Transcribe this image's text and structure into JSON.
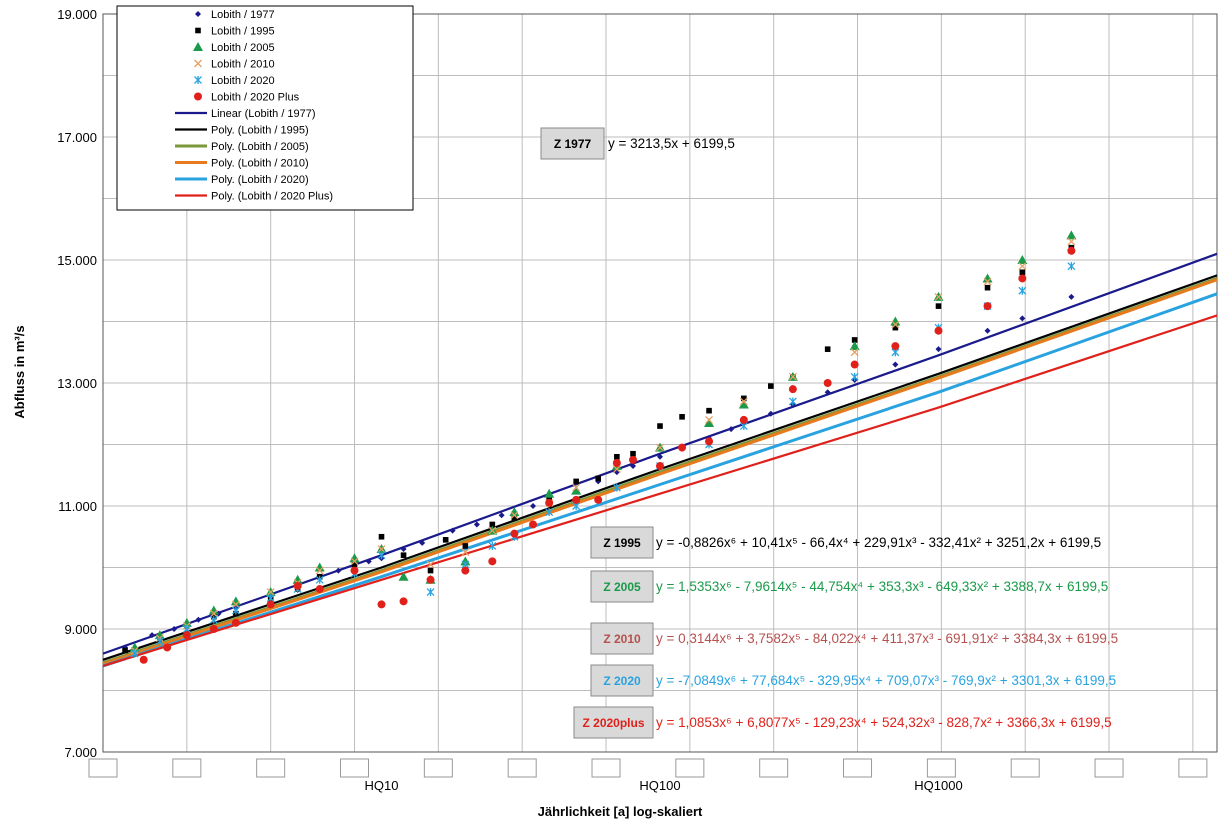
{
  "chart_data": {
    "type": "scatter",
    "xlabel": "Jährlichkeit [a] log-skaliert",
    "ylabel": "Abfluss in m³/s",
    "x_scale": "log",
    "xlim": [
      1,
      10000
    ],
    "ylim": [
      7000,
      19000
    ],
    "grid": true,
    "legend_position": "top-left",
    "y_ticks": [
      "7.000",
      "9.000",
      "11.000",
      "13.000",
      "15.000",
      "17.000",
      "19.000"
    ],
    "x_tick_labels": [
      {
        "x": 10,
        "label": "HQ10"
      },
      {
        "x": 100,
        "label": "HQ100"
      },
      {
        "x": 1000,
        "label": "HQ1000"
      }
    ],
    "series": [
      {
        "name": "Lobith / 1977",
        "marker": "diamond",
        "color": "#1a1a8c",
        "points": [
          [
            1.2,
            8700
          ],
          [
            1.5,
            8900
          ],
          [
            1.8,
            9000
          ],
          [
            2.2,
            9150
          ],
          [
            2.6,
            9250
          ],
          [
            3,
            9350
          ],
          [
            4,
            9550
          ],
          [
            5,
            9700
          ],
          [
            6,
            9850
          ],
          [
            7,
            9950
          ],
          [
            9,
            10100
          ],
          [
            10,
            10150
          ],
          [
            12,
            10300
          ],
          [
            14,
            10400
          ],
          [
            18,
            10600
          ],
          [
            22,
            10700
          ],
          [
            27,
            10850
          ],
          [
            30,
            10900
          ],
          [
            35,
            11000
          ],
          [
            40,
            11100
          ],
          [
            50,
            11250
          ],
          [
            60,
            11400
          ],
          [
            70,
            11550
          ],
          [
            80,
            11650
          ],
          [
            100,
            11800
          ],
          [
            120,
            11950
          ],
          [
            150,
            12100
          ],
          [
            180,
            12250
          ],
          [
            200,
            12350
          ],
          [
            250,
            12500
          ],
          [
            300,
            12650
          ],
          [
            400,
            12850
          ],
          [
            500,
            13050
          ],
          [
            700,
            13300
          ],
          [
            1000,
            13550
          ],
          [
            1500,
            13850
          ],
          [
            2000,
            14050
          ],
          [
            3000,
            14400
          ]
        ]
      },
      {
        "name": "Lobith / 1995",
        "marker": "square",
        "color": "#000000",
        "points": [
          [
            1.2,
            8650
          ],
          [
            1.6,
            8850
          ],
          [
            2,
            9050
          ],
          [
            2.5,
            9200
          ],
          [
            3,
            9250
          ],
          [
            4,
            9500
          ],
          [
            5,
            9650
          ],
          [
            6,
            9850
          ],
          [
            8,
            10050
          ],
          [
            10,
            10500
          ],
          [
            12,
            10200
          ],
          [
            15,
            9950
          ],
          [
            17,
            10450
          ],
          [
            20,
            10350
          ],
          [
            25,
            10700
          ],
          [
            30,
            10800
          ],
          [
            40,
            11150
          ],
          [
            50,
            11400
          ],
          [
            60,
            11450
          ],
          [
            70,
            11800
          ],
          [
            80,
            11850
          ],
          [
            100,
            12300
          ],
          [
            120,
            12450
          ],
          [
            150,
            12550
          ],
          [
            200,
            12750
          ],
          [
            250,
            12950
          ],
          [
            300,
            13100
          ],
          [
            400,
            13550
          ],
          [
            500,
            13700
          ],
          [
            700,
            13900
          ],
          [
            1000,
            14250
          ],
          [
            1500,
            14550
          ],
          [
            2000,
            14800
          ],
          [
            3000,
            15200
          ]
        ]
      },
      {
        "name": "Lobith / 2005",
        "marker": "triangle",
        "color": "#1a9a4a",
        "points": [
          [
            1.3,
            8700
          ],
          [
            1.6,
            8900
          ],
          [
            2,
            9100
          ],
          [
            2.5,
            9300
          ],
          [
            3,
            9450
          ],
          [
            4,
            9600
          ],
          [
            5,
            9800
          ],
          [
            6,
            10000
          ],
          [
            8,
            10150
          ],
          [
            10,
            10300
          ],
          [
            12,
            9850
          ],
          [
            15,
            9800
          ],
          [
            20,
            10100
          ],
          [
            25,
            10600
          ],
          [
            30,
            10900
          ],
          [
            40,
            11200
          ],
          [
            50,
            11250
          ],
          [
            70,
            11650
          ],
          [
            100,
            11950
          ],
          [
            150,
            12350
          ],
          [
            200,
            12650
          ],
          [
            300,
            13100
          ],
          [
            500,
            13600
          ],
          [
            700,
            14000
          ],
          [
            1000,
            14400
          ],
          [
            1500,
            14700
          ],
          [
            2000,
            15000
          ],
          [
            3000,
            15400
          ]
        ]
      },
      {
        "name": "Lobith / 2010",
        "marker": "x",
        "color": "#e8a060",
        "points": [
          [
            1.3,
            8650
          ],
          [
            1.6,
            8850
          ],
          [
            2,
            9050
          ],
          [
            2.5,
            9250
          ],
          [
            3,
            9400
          ],
          [
            4,
            9600
          ],
          [
            5,
            9750
          ],
          [
            6,
            9950
          ],
          [
            8,
            10100
          ],
          [
            10,
            10300
          ],
          [
            15,
            10050
          ],
          [
            20,
            10250
          ],
          [
            25,
            10600
          ],
          [
            30,
            10850
          ],
          [
            40,
            11050
          ],
          [
            50,
            11300
          ],
          [
            70,
            11600
          ],
          [
            100,
            11950
          ],
          [
            150,
            12400
          ],
          [
            200,
            12700
          ],
          [
            300,
            13100
          ],
          [
            500,
            13500
          ],
          [
            700,
            13950
          ],
          [
            1000,
            14400
          ],
          [
            1500,
            14650
          ],
          [
            2000,
            14900
          ],
          [
            3000,
            15300
          ]
        ]
      },
      {
        "name": "Lobith / 2020",
        "marker": "asterisk",
        "color": "#29a3df",
        "points": [
          [
            1.3,
            8600
          ],
          [
            1.6,
            8800
          ],
          [
            2,
            9000
          ],
          [
            2.5,
            9150
          ],
          [
            3,
            9300
          ],
          [
            4,
            9500
          ],
          [
            5,
            9650
          ],
          [
            6,
            9800
          ],
          [
            8,
            9900
          ],
          [
            10,
            10200
          ],
          [
            15,
            9600
          ],
          [
            20,
            10050
          ],
          [
            25,
            10350
          ],
          [
            30,
            10500
          ],
          [
            40,
            10900
          ],
          [
            50,
            11000
          ],
          [
            70,
            11300
          ],
          [
            100,
            11650
          ],
          [
            150,
            12000
          ],
          [
            200,
            12300
          ],
          [
            300,
            12700
          ],
          [
            500,
            13100
          ],
          [
            700,
            13500
          ],
          [
            1000,
            13900
          ],
          [
            1500,
            14250
          ],
          [
            2000,
            14500
          ],
          [
            3000,
            14900
          ]
        ]
      },
      {
        "name": "Lobith / 2020 Plus",
        "marker": "circle",
        "color": "#e0211b",
        "points": [
          [
            1.4,
            8500
          ],
          [
            1.7,
            8700
          ],
          [
            2,
            8900
          ],
          [
            2.5,
            9000
          ],
          [
            3,
            9100
          ],
          [
            4,
            9400
          ],
          [
            5,
            9700
          ],
          [
            6,
            9650
          ],
          [
            8,
            9950
          ],
          [
            10,
            9400
          ],
          [
            12,
            9450
          ],
          [
            15,
            9800
          ],
          [
            20,
            9950
          ],
          [
            25,
            10100
          ],
          [
            30,
            10550
          ],
          [
            35,
            10700
          ],
          [
            40,
            11050
          ],
          [
            50,
            11100
          ],
          [
            60,
            11100
          ],
          [
            70,
            11700
          ],
          [
            80,
            11750
          ],
          [
            100,
            11650
          ],
          [
            120,
            11950
          ],
          [
            150,
            12050
          ],
          [
            200,
            12400
          ],
          [
            300,
            12900
          ],
          [
            400,
            13000
          ],
          [
            500,
            13300
          ],
          [
            700,
            13600
          ],
          [
            1000,
            13850
          ],
          [
            1500,
            14250
          ],
          [
            2000,
            14700
          ],
          [
            3000,
            15150
          ]
        ]
      }
    ],
    "trendlines": [
      {
        "name": "Linear (Lobith / 1977)",
        "color": "#1a1a8c",
        "width": 2.2,
        "points": [
          [
            1,
            8600
          ],
          [
            10,
            10200
          ],
          [
            100,
            11850
          ],
          [
            1000,
            13450
          ],
          [
            10000,
            15100
          ]
        ]
      },
      {
        "name": "Poly. (Lobith / 1995)",
        "color": "#000000",
        "width": 2.2,
        "points": [
          [
            1,
            8500
          ],
          [
            10,
            10000
          ],
          [
            100,
            11600
          ],
          [
            1000,
            13150
          ],
          [
            10000,
            14750
          ]
        ]
      },
      {
        "name": "Poly. (Lobith / 2005)",
        "color": "#7a9a3a",
        "width": 3,
        "points": [
          [
            1,
            8450
          ],
          [
            10,
            9950
          ],
          [
            100,
            11550
          ],
          [
            1000,
            13100
          ],
          [
            10000,
            14700
          ]
        ]
      },
      {
        "name": "Poly. (Lobith / 2010)",
        "color": "#e87a1e",
        "width": 3,
        "points": [
          [
            1,
            8430
          ],
          [
            10,
            9930
          ],
          [
            100,
            11520
          ],
          [
            1000,
            13080
          ],
          [
            10000,
            14680
          ]
        ]
      },
      {
        "name": "Poly. (Lobith / 2020)",
        "color": "#29a3df",
        "width": 3,
        "points": [
          [
            1,
            8400
          ],
          [
            10,
            9850
          ],
          [
            100,
            11350
          ],
          [
            1000,
            12850
          ],
          [
            10000,
            14450
          ]
        ]
      },
      {
        "name": "Poly. (Lobith / 2020 Plus)",
        "color": "#e0211b",
        "width": 2.2,
        "points": [
          [
            1,
            8400
          ],
          [
            10,
            9800
          ],
          [
            100,
            11200
          ],
          [
            1000,
            12600
          ],
          [
            10000,
            14100
          ]
        ]
      }
    ],
    "annotations": [
      {
        "tag": "Z 1977",
        "equation": "y = 3213,5x + 6199,5",
        "color": "#000000"
      },
      {
        "tag": "Z 1995",
        "equation": "y = -0,8826x⁶ + 10,41x⁵ - 66,4x⁴ + 229,91x³ - 332,41x² + 3251,2x + 6199,5",
        "color": "#000000"
      },
      {
        "tag": "Z 2005",
        "equation": "y = 1,5353x⁶ - 7,9614x⁵ - 44,754x⁴ + 353,3x³ - 649,33x² + 3388,7x + 6199,5",
        "color": "#1a9a4a"
      },
      {
        "tag": "Z 2010",
        "equation": "y = 0,3144x⁶ + 3,7582x⁵ - 84,022x⁴ + 411,37x³ - 691,91x² + 3384,3x + 6199,5",
        "color": "#b5514f"
      },
      {
        "tag": "Z 2020",
        "equation": "y = -7,0849x⁶ + 77,684x⁵ - 329,95x⁴ + 709,07x³ - 769,9x² + 3301,3x + 6199,5",
        "color": "#29a3df"
      },
      {
        "tag": "Z 2020plus",
        "equation": "y = 1,0853x⁶ + 6,8077x⁵ - 129,23x⁴ + 524,32x³ - 828,7x² + 3366,3x + 6199,5",
        "color": "#e0211b"
      }
    ]
  }
}
